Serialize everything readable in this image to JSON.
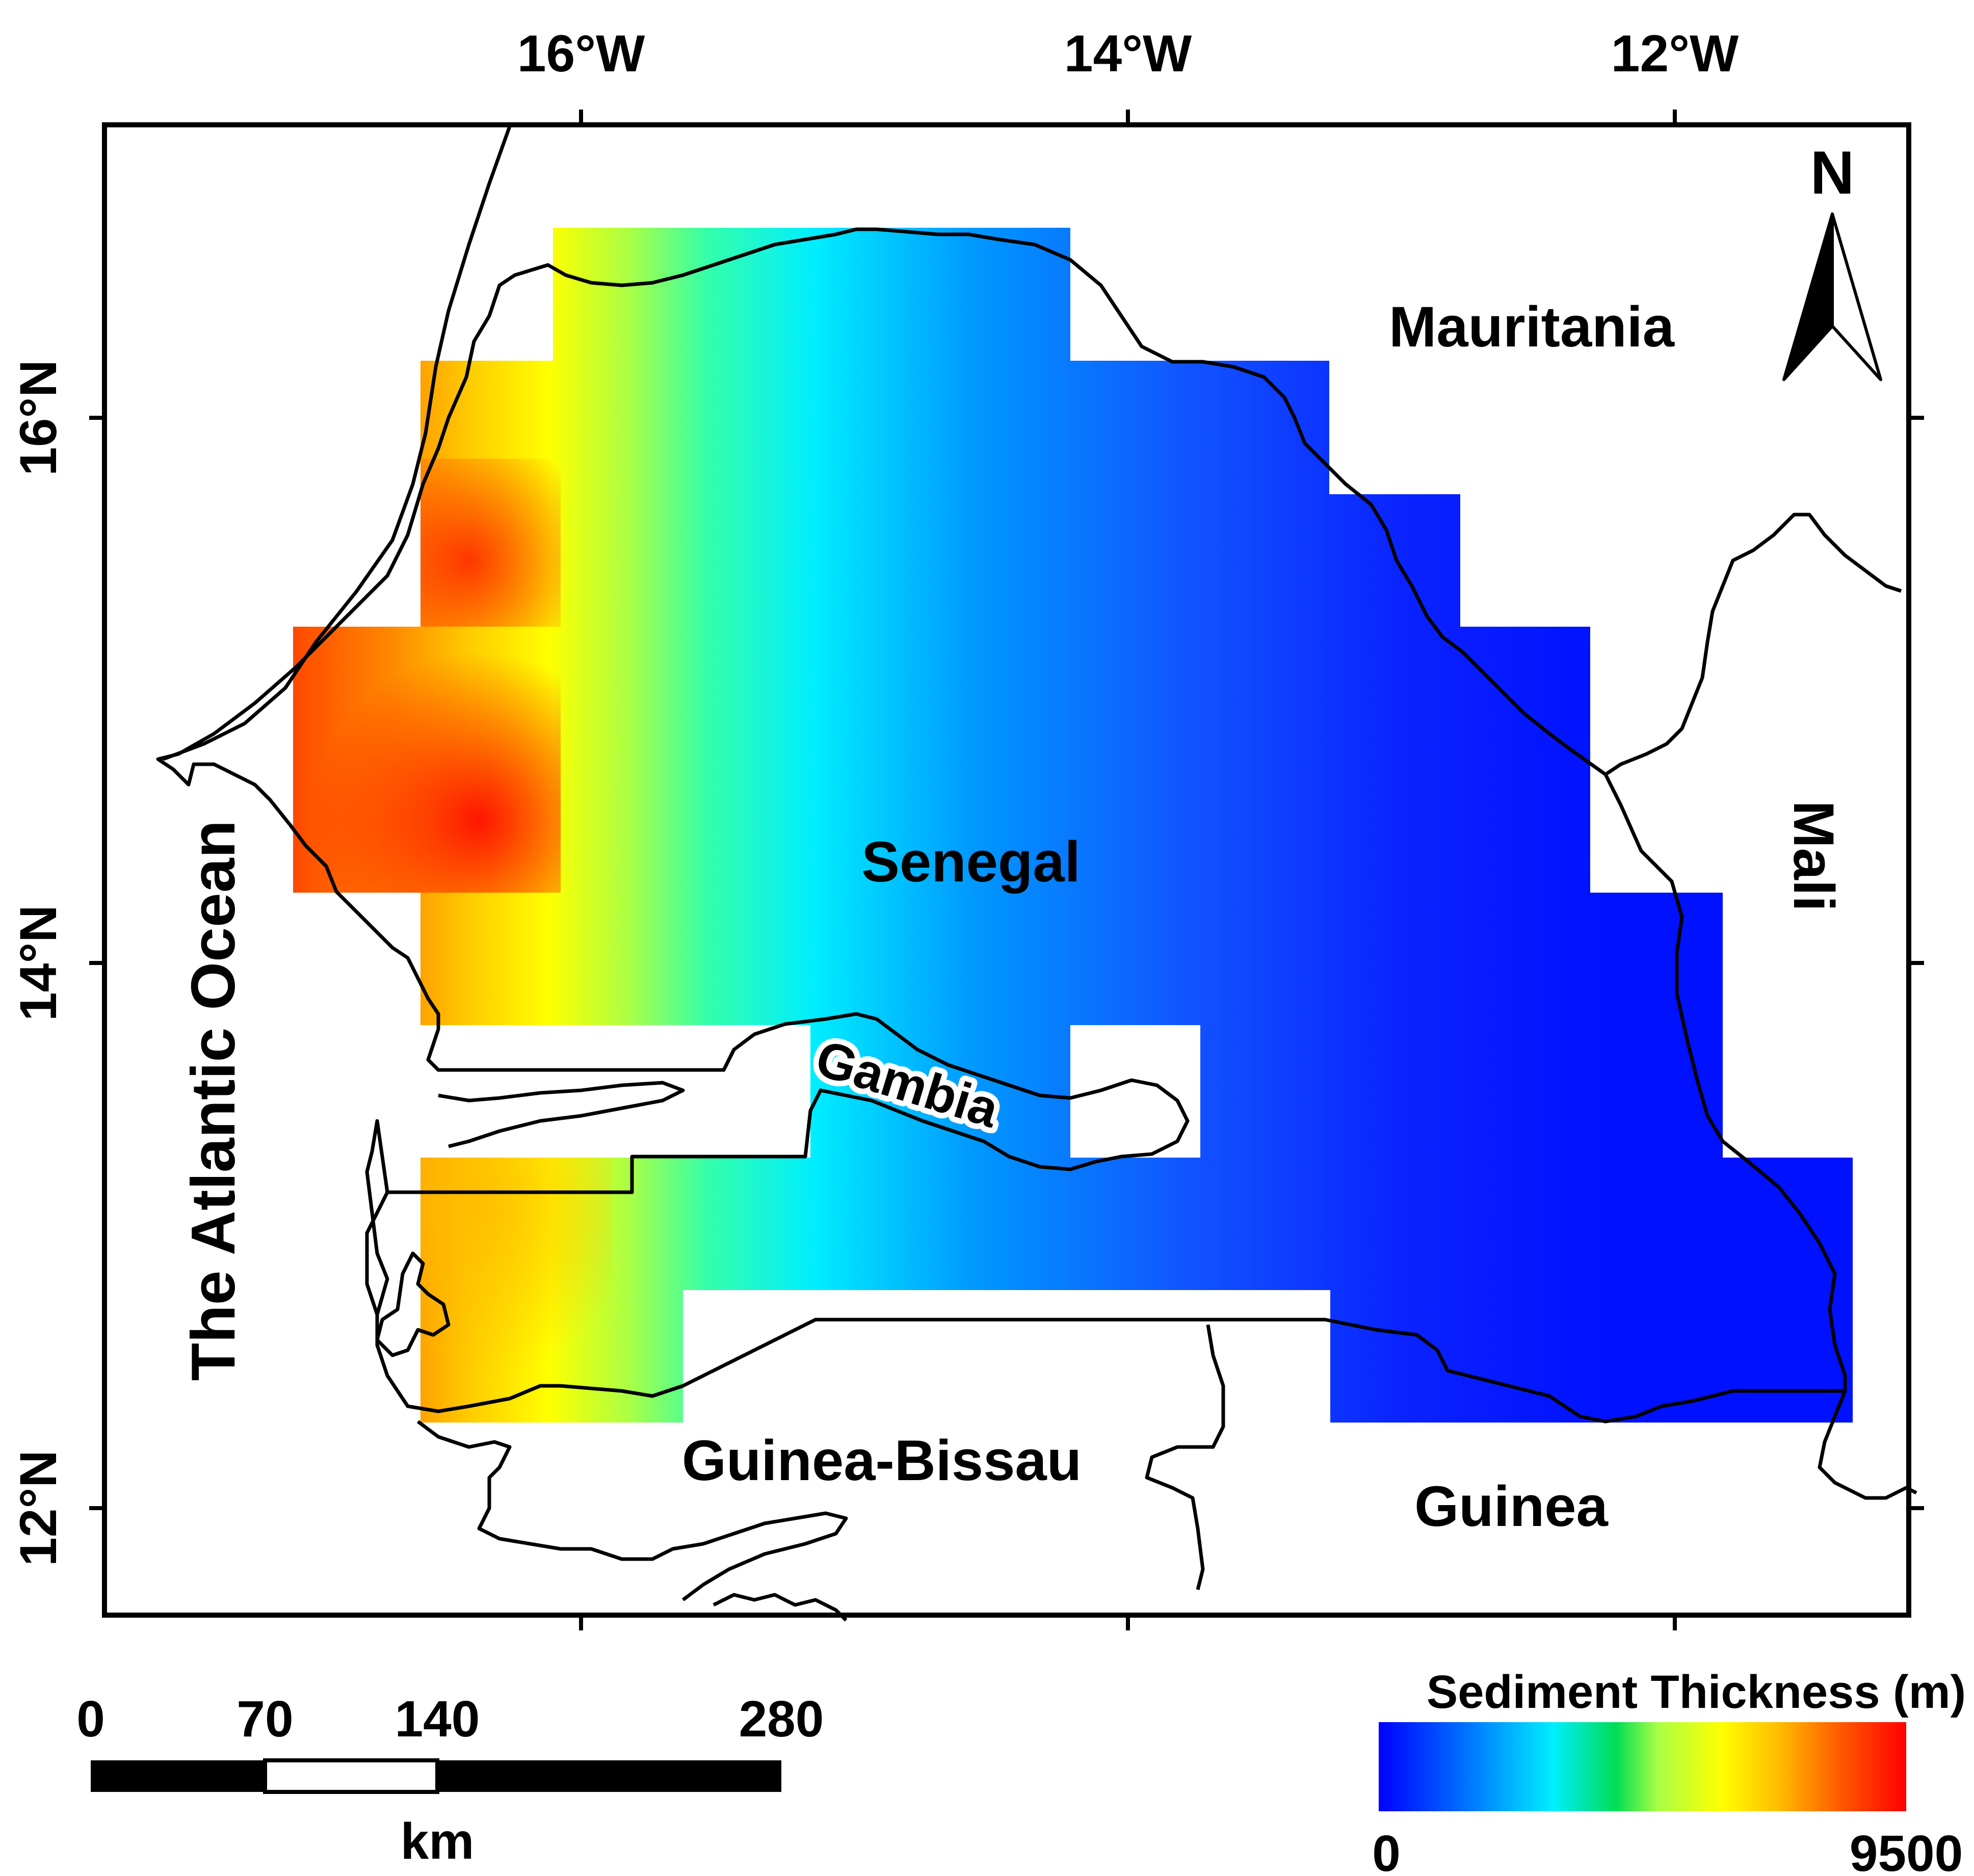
{
  "map": {
    "longitude_ticks": [
      "16°W",
      "14°W",
      "12°W"
    ],
    "latitude_ticks": [
      "16°N",
      "14°N",
      "12°N"
    ],
    "labels": {
      "mauritania": "Mauritania",
      "senegal": "Senegal",
      "gambia": "Gambia",
      "mali": "Mali",
      "guinea_bissau": "Guinea-Bissau",
      "guinea": "Guinea",
      "ocean": "The Atlantic Ocean"
    },
    "north_arrow_label": "N"
  },
  "scale_bar": {
    "ticks": [
      "0",
      "70",
      "140",
      "280"
    ],
    "unit": "km"
  },
  "legend": {
    "title": "Sediment Thickness (m)",
    "min_label": "0",
    "max_label": "9500",
    "colors": [
      "#0000ff",
      "#0066ff",
      "#00eeff",
      "#00dd55",
      "#aaff44",
      "#ffff00",
      "#ffbb00",
      "#ff5500",
      "#ff0000"
    ]
  },
  "colors": {
    "frame": "#000000",
    "background": "#ffffff"
  }
}
